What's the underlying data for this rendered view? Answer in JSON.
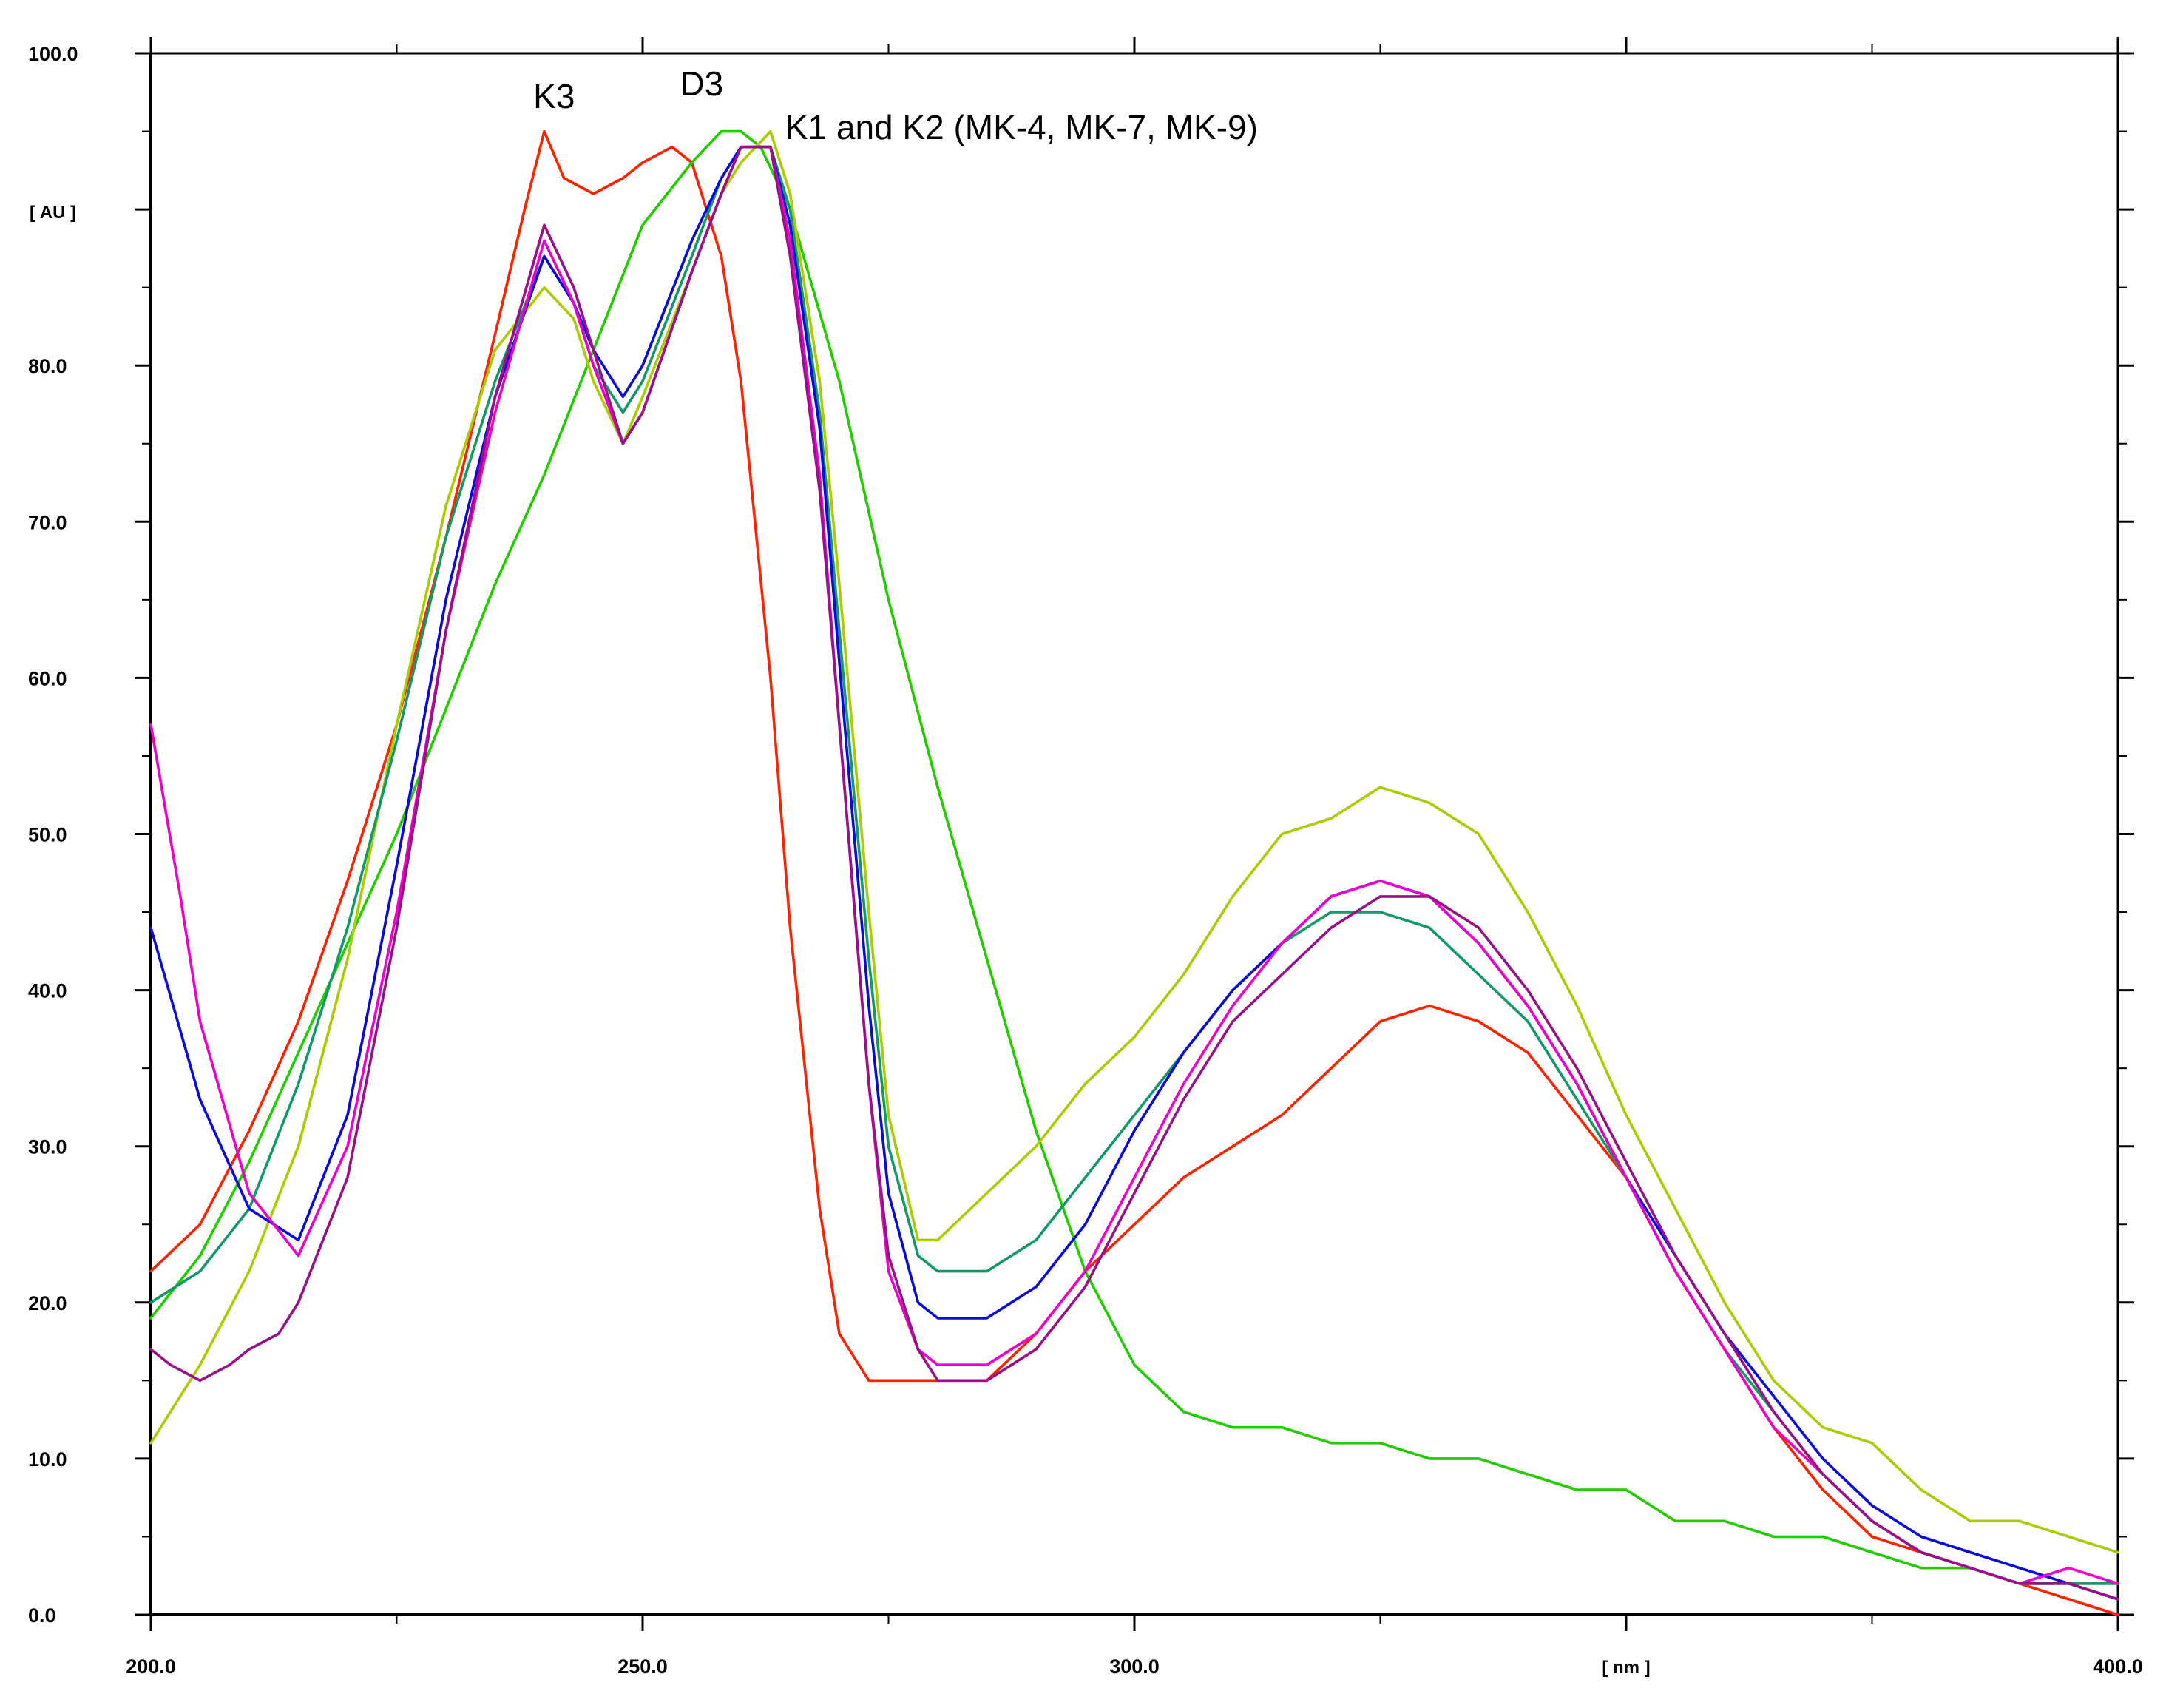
{
  "chart_data": {
    "type": "line",
    "title": "",
    "xlabel": "[ nm ]",
    "ylabel": "[ AU ]",
    "xlim": [
      200,
      400
    ],
    "ylim": [
      0,
      100
    ],
    "grid": false,
    "x_ticks": [
      {
        "value": 200,
        "label": "200.0"
      },
      {
        "value": 250,
        "label": "250.0"
      },
      {
        "value": 300,
        "label": "300.0"
      },
      {
        "value": 400,
        "label": "400.0"
      }
    ],
    "y_ticks": [
      {
        "value": 0,
        "label": "0.0"
      },
      {
        "value": 10,
        "label": "10.0"
      },
      {
        "value": 20,
        "label": "20.0"
      },
      {
        "value": 30,
        "label": "30.0"
      },
      {
        "value": 40,
        "label": "40.0"
      },
      {
        "value": 50,
        "label": "50.0"
      },
      {
        "value": 60,
        "label": "60.0"
      },
      {
        "value": 70,
        "label": "70.0"
      },
      {
        "value": 80,
        "label": "80.0"
      },
      {
        "value": 100,
        "label": "100.0"
      }
    ],
    "annotations": [
      {
        "text": "K3",
        "x": 241,
        "y": 96.5
      },
      {
        "text": "D3",
        "x": 256,
        "y": 97.3
      },
      {
        "text": "K1 and K2 (MK-4, MK-7, MK-9)",
        "x": 264.5,
        "y": 94.5
      }
    ],
    "series": [
      {
        "color": "#ff2200",
        "x": [
          200,
          205,
          210,
          215,
          220,
          225,
          230,
          235,
          238,
          240,
          242,
          245,
          248,
          250,
          253,
          255,
          258,
          260,
          263,
          265,
          268,
          270,
          273,
          275,
          278,
          280,
          285,
          290,
          295,
          300,
          305,
          310,
          315,
          320,
          325,
          330,
          335,
          340,
          345,
          350,
          355,
          360,
          365,
          370,
          375,
          380,
          385,
          390,
          395,
          400
        ],
        "y": [
          22,
          25,
          31,
          38,
          47,
          57,
          69,
          82,
          90,
          95,
          92,
          91,
          92,
          93,
          94,
          93,
          87,
          79,
          60,
          44,
          26,
          18,
          15,
          15,
          15,
          15,
          15,
          18,
          22,
          25,
          28,
          30,
          32,
          35,
          38,
          39,
          38,
          36,
          32,
          28,
          22,
          17,
          12,
          8,
          5,
          4,
          3,
          2,
          1,
          0
        ]
      },
      {
        "color": "#22cc00",
        "x": [
          200,
          205,
          210,
          215,
          220,
          225,
          230,
          235,
          240,
          245,
          250,
          255,
          258,
          260,
          262,
          265,
          270,
          275,
          280,
          285,
          290,
          295,
          300,
          305,
          310,
          315,
          320,
          325,
          330,
          335,
          340,
          345,
          350,
          355,
          360,
          365,
          370,
          375,
          380,
          385,
          390,
          395,
          400
        ],
        "y": [
          19,
          23,
          29,
          36,
          43,
          50,
          58,
          66,
          73,
          81,
          89,
          93,
          95,
          95,
          94,
          90,
          79,
          65,
          53,
          42,
          31,
          22,
          16,
          13,
          12,
          12,
          11,
          11,
          10,
          10,
          9,
          8,
          8,
          6,
          6,
          5,
          5,
          4,
          3,
          3,
          2,
          2,
          2
        ]
      },
      {
        "color": "#aacc00",
        "x": [
          200,
          205,
          210,
          215,
          220,
          225,
          230,
          235,
          240,
          243,
          245,
          248,
          250,
          255,
          258,
          260,
          263,
          265,
          268,
          270,
          273,
          275,
          278,
          280,
          285,
          290,
          295,
          300,
          305,
          310,
          315,
          320,
          325,
          330,
          335,
          340,
          345,
          350,
          355,
          360,
          365,
          370,
          375,
          380,
          385,
          390,
          395,
          400
        ],
        "y": [
          11,
          16,
          22,
          30,
          42,
          57,
          71,
          81,
          85,
          83,
          79,
          75,
          78,
          86,
          91,
          93,
          95,
          91,
          79,
          66,
          45,
          32,
          24,
          24,
          27,
          30,
          34,
          37,
          41,
          46,
          50,
          51,
          53,
          52,
          50,
          45,
          39,
          32,
          26,
          20,
          15,
          12,
          11,
          8,
          6,
          6,
          5,
          4
        ]
      },
      {
        "color": "#119966",
        "x": [
          200,
          205,
          210,
          215,
          220,
          225,
          230,
          235,
          240,
          243,
          245,
          248,
          250,
          255,
          258,
          260,
          263,
          265,
          268,
          270,
          273,
          275,
          278,
          280,
          285,
          290,
          295,
          300,
          305,
          310,
          315,
          320,
          325,
          330,
          335,
          340,
          345,
          350,
          355,
          360,
          365,
          370,
          375,
          380,
          385,
          390,
          395,
          400
        ],
        "y": [
          20,
          22,
          26,
          34,
          44,
          56,
          69,
          79,
          87,
          84,
          80,
          77,
          79,
          87,
          92,
          94,
          94,
          90,
          77,
          63,
          42,
          30,
          23,
          22,
          22,
          24,
          28,
          32,
          36,
          40,
          43,
          45,
          45,
          44,
          41,
          38,
          33,
          28,
          22,
          17,
          13,
          9,
          6,
          4,
          3,
          2,
          2,
          2
        ]
      },
      {
        "color": "#0a0add",
        "x": [
          200,
          205,
          210,
          215,
          220,
          225,
          230,
          235,
          240,
          243,
          245,
          248,
          250,
          255,
          258,
          260,
          263,
          265,
          268,
          270,
          273,
          275,
          278,
          280,
          285,
          290,
          295,
          300,
          305,
          310,
          315,
          320,
          325,
          330,
          335,
          340,
          345,
          350,
          355,
          360,
          365,
          370,
          375,
          380,
          385,
          390,
          395,
          400
        ],
        "y": [
          44,
          33,
          26,
          24,
          32,
          48,
          65,
          78,
          87,
          84,
          81,
          78,
          80,
          88,
          92,
          94,
          94,
          89,
          76,
          61,
          39,
          27,
          20,
          19,
          19,
          21,
          25,
          31,
          36,
          40,
          43,
          46,
          47,
          46,
          43,
          39,
          34,
          28,
          23,
          18,
          14,
          10,
          7,
          5,
          4,
          3,
          2,
          1
        ]
      },
      {
        "color": "#ee00cc",
        "x": [
          200,
          203,
          205,
          210,
          215,
          220,
          225,
          230,
          235,
          240,
          243,
          245,
          248,
          250,
          255,
          258,
          260,
          263,
          265,
          268,
          270,
          273,
          275,
          278,
          280,
          285,
          290,
          295,
          300,
          305,
          310,
          315,
          320,
          325,
          330,
          335,
          340,
          345,
          350,
          355,
          360,
          365,
          370,
          375,
          380,
          385,
          390,
          395,
          400
        ],
        "y": [
          57,
          46,
          38,
          27,
          23,
          30,
          45,
          63,
          77,
          88,
          84,
          80,
          75,
          77,
          86,
          91,
          94,
          94,
          88,
          73,
          57,
          34,
          22,
          17,
          16,
          16,
          18,
          22,
          28,
          34,
          39,
          43,
          46,
          47,
          46,
          43,
          39,
          34,
          28,
          22,
          17,
          12,
          9,
          6,
          4,
          3,
          2,
          3,
          2
        ]
      },
      {
        "color": "#991188",
        "x": [
          200,
          202,
          205,
          208,
          210,
          213,
          215,
          220,
          225,
          230,
          235,
          240,
          243,
          245,
          248,
          250,
          255,
          258,
          260,
          263,
          265,
          268,
          270,
          273,
          275,
          278,
          280,
          285,
          290,
          295,
          300,
          305,
          310,
          315,
          320,
          325,
          330,
          335,
          340,
          345,
          350,
          355,
          360,
          365,
          370,
          375,
          380,
          385,
          390,
          395,
          400
        ],
        "y": [
          17,
          16,
          15,
          16,
          17,
          18,
          20,
          28,
          44,
          63,
          78,
          89,
          85,
          81,
          75,
          77,
          86,
          91,
          94,
          94,
          87,
          72,
          57,
          34,
          23,
          17,
          15,
          15,
          17,
          21,
          27,
          33,
          38,
          41,
          44,
          46,
          46,
          44,
          40,
          35,
          29,
          23,
          18,
          13,
          9,
          6,
          4,
          3,
          2,
          2,
          1
        ]
      }
    ]
  }
}
